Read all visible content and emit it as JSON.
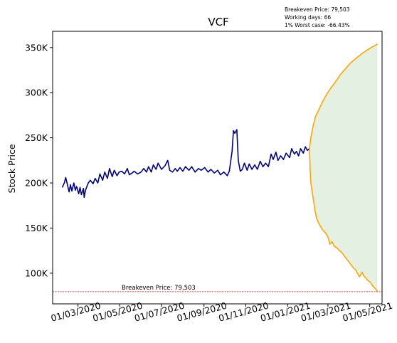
{
  "chart_data": {
    "type": "line",
    "title": "VCF",
    "ylabel": "Stock Price",
    "xlabel": "",
    "ylim": [
      66000,
      368000
    ],
    "x_range": [
      "2020-01-24",
      "2021-05-19"
    ],
    "y_ticks": [
      {
        "value": 100000,
        "label": "100K"
      },
      {
        "value": 150000,
        "label": "150K"
      },
      {
        "value": 200000,
        "label": "200K"
      },
      {
        "value": 250000,
        "label": "250K"
      },
      {
        "value": 300000,
        "label": "300K"
      },
      {
        "value": 350000,
        "label": "350K"
      }
    ],
    "x_ticks": [
      {
        "date": "2020-03-01",
        "label": "01/03/2020"
      },
      {
        "date": "2020-05-01",
        "label": "01/05/2020"
      },
      {
        "date": "2020-07-01",
        "label": "01/07/2020"
      },
      {
        "date": "2020-09-01",
        "label": "01/09/2020"
      },
      {
        "date": "2020-11-01",
        "label": "01/11/2020"
      },
      {
        "date": "2021-01-01",
        "label": "01/01/2021"
      },
      {
        "date": "2021-03-01",
        "label": "01/03/2021"
      },
      {
        "date": "2021-05-01",
        "label": "01/05/2021"
      }
    ],
    "series": [
      {
        "color": "#00008b",
        "points": [
          [
            "2020-02-07",
            195000
          ],
          [
            "2020-02-10",
            200000
          ],
          [
            "2020-02-12",
            206000
          ],
          [
            "2020-02-14",
            200000
          ],
          [
            "2020-02-17",
            190000
          ],
          [
            "2020-02-19",
            198000
          ],
          [
            "2020-02-21",
            191000
          ],
          [
            "2020-02-24",
            200000
          ],
          [
            "2020-02-26",
            192000
          ],
          [
            "2020-02-28",
            196000
          ],
          [
            "2020-03-02",
            188000
          ],
          [
            "2020-03-04",
            195000
          ],
          [
            "2020-03-06",
            187000
          ],
          [
            "2020-03-09",
            194000
          ],
          [
            "2020-03-10",
            184000
          ],
          [
            "2020-03-12",
            192000
          ],
          [
            "2020-03-16",
            200000
          ],
          [
            "2020-03-19",
            203000
          ],
          [
            "2020-03-23",
            199000
          ],
          [
            "2020-03-26",
            205000
          ],
          [
            "2020-03-30",
            200000
          ],
          [
            "2020-04-02",
            210000
          ],
          [
            "2020-04-06",
            203000
          ],
          [
            "2020-04-09",
            212000
          ],
          [
            "2020-04-13",
            205000
          ],
          [
            "2020-04-16",
            216000
          ],
          [
            "2020-04-20",
            207000
          ],
          [
            "2020-04-23",
            214000
          ],
          [
            "2020-04-27",
            208000
          ],
          [
            "2020-04-30",
            212000
          ],
          [
            "2020-05-04",
            213000
          ],
          [
            "2020-05-08",
            210000
          ],
          [
            "2020-05-12",
            216000
          ],
          [
            "2020-05-15",
            209000
          ],
          [
            "2020-05-19",
            211000
          ],
          [
            "2020-05-22",
            213000
          ],
          [
            "2020-05-27",
            210000
          ],
          [
            "2020-06-01",
            212000
          ],
          [
            "2020-06-05",
            216000
          ],
          [
            "2020-06-09",
            212000
          ],
          [
            "2020-06-12",
            218000
          ],
          [
            "2020-06-16",
            212000
          ],
          [
            "2020-06-19",
            220000
          ],
          [
            "2020-06-23",
            215000
          ],
          [
            "2020-06-26",
            222000
          ],
          [
            "2020-07-01",
            215000
          ],
          [
            "2020-07-06",
            219000
          ],
          [
            "2020-07-10",
            225000
          ],
          [
            "2020-07-13",
            214000
          ],
          [
            "2020-07-17",
            212000
          ],
          [
            "2020-07-21",
            216000
          ],
          [
            "2020-07-24",
            213000
          ],
          [
            "2020-07-28",
            217000
          ],
          [
            "2020-08-01",
            213000
          ],
          [
            "2020-08-05",
            218000
          ],
          [
            "2020-08-10",
            214000
          ],
          [
            "2020-08-14",
            218000
          ],
          [
            "2020-08-19",
            212000
          ],
          [
            "2020-08-24",
            216000
          ],
          [
            "2020-08-28",
            214000
          ],
          [
            "2020-09-02",
            217000
          ],
          [
            "2020-09-07",
            212000
          ],
          [
            "2020-09-11",
            215000
          ],
          [
            "2020-09-16",
            211000
          ],
          [
            "2020-09-21",
            214000
          ],
          [
            "2020-09-25",
            209000
          ],
          [
            "2020-09-30",
            212000
          ],
          [
            "2020-10-05",
            208000
          ],
          [
            "2020-10-08",
            213000
          ],
          [
            "2020-10-12",
            235000
          ],
          [
            "2020-10-14",
            258000
          ],
          [
            "2020-10-16",
            255000
          ],
          [
            "2020-10-19",
            259000
          ],
          [
            "2020-10-21",
            225000
          ],
          [
            "2020-10-24",
            213000
          ],
          [
            "2020-10-27",
            215000
          ],
          [
            "2020-10-30",
            222000
          ],
          [
            "2020-11-03",
            214000
          ],
          [
            "2020-11-06",
            221000
          ],
          [
            "2020-11-10",
            215000
          ],
          [
            "2020-11-14",
            220000
          ],
          [
            "2020-11-18",
            215000
          ],
          [
            "2020-11-22",
            224000
          ],
          [
            "2020-11-26",
            218000
          ],
          [
            "2020-11-30",
            222000
          ],
          [
            "2020-12-04",
            218000
          ],
          [
            "2020-12-08",
            232000
          ],
          [
            "2020-12-11",
            226000
          ],
          [
            "2020-12-15",
            234000
          ],
          [
            "2020-12-18",
            225000
          ],
          [
            "2020-12-22",
            230000
          ],
          [
            "2020-12-26",
            226000
          ],
          [
            "2020-12-30",
            233000
          ],
          [
            "2021-01-04",
            228000
          ],
          [
            "2021-01-07",
            238000
          ],
          [
            "2021-01-11",
            232000
          ],
          [
            "2021-01-14",
            235000
          ],
          [
            "2021-01-17",
            230000
          ],
          [
            "2021-01-20",
            238000
          ],
          [
            "2021-01-24",
            233000
          ],
          [
            "2021-01-27",
            240000
          ],
          [
            "2021-01-30",
            236000
          ],
          [
            "2021-02-02",
            238000
          ]
        ]
      },
      {
        "color": "#ffa500",
        "points": [
          [
            "2021-02-02",
            238000
          ],
          [
            "2021-02-04",
            250000
          ],
          [
            "2021-02-07",
            262000
          ],
          [
            "2021-02-11",
            274000
          ],
          [
            "2021-02-15",
            280000
          ],
          [
            "2021-02-21",
            290000
          ],
          [
            "2021-02-27",
            298000
          ],
          [
            "2021-03-05",
            305000
          ],
          [
            "2021-03-12",
            312000
          ],
          [
            "2021-03-19",
            320000
          ],
          [
            "2021-03-26",
            326000
          ],
          [
            "2021-04-03",
            333000
          ],
          [
            "2021-04-11",
            338000
          ],
          [
            "2021-04-19",
            343000
          ],
          [
            "2021-04-27",
            347000
          ],
          [
            "2021-05-03",
            350000
          ],
          [
            "2021-05-08",
            352000
          ],
          [
            "2021-05-12",
            354000
          ]
        ]
      },
      {
        "color": "#ffa500",
        "points": [
          [
            "2021-02-02",
            238000
          ],
          [
            "2021-02-03",
            215000
          ],
          [
            "2021-02-04",
            200000
          ],
          [
            "2021-02-06",
            190000
          ],
          [
            "2021-02-08",
            180000
          ],
          [
            "2021-02-10",
            170000
          ],
          [
            "2021-02-12",
            162000
          ],
          [
            "2021-02-15",
            156000
          ],
          [
            "2021-02-18",
            152000
          ],
          [
            "2021-02-21",
            148000
          ],
          [
            "2021-02-25",
            145000
          ],
          [
            "2021-03-01",
            140000
          ],
          [
            "2021-03-04",
            132000
          ],
          [
            "2021-03-07",
            135000
          ],
          [
            "2021-03-10",
            130000
          ],
          [
            "2021-03-14",
            128000
          ],
          [
            "2021-03-18",
            125000
          ],
          [
            "2021-03-22",
            122000
          ],
          [
            "2021-03-26",
            118000
          ],
          [
            "2021-03-30",
            114000
          ],
          [
            "2021-04-03",
            110000
          ],
          [
            "2021-04-07",
            106000
          ],
          [
            "2021-04-10",
            104000
          ],
          [
            "2021-04-13",
            100000
          ],
          [
            "2021-04-16",
            96000
          ],
          [
            "2021-04-20",
            101000
          ],
          [
            "2021-04-22",
            97000
          ],
          [
            "2021-04-25",
            95000
          ],
          [
            "2021-04-28",
            92000
          ],
          [
            "2021-05-02",
            90000
          ],
          [
            "2021-05-05",
            86000
          ],
          [
            "2021-05-08",
            84000
          ],
          [
            "2021-05-10",
            82000
          ],
          [
            "2021-05-12",
            80000
          ]
        ]
      }
    ],
    "band": {
      "color": "#2e8b22",
      "opacity": 0.13
    },
    "breakeven": {
      "value": 79503,
      "label": "Breakeven Price: 79,503",
      "color": "#ff0000"
    },
    "annotations": [
      "Breakeven Price: 79,503",
      "Working days: 66",
      "1% Worst case: -66.43%"
    ],
    "grid": false,
    "legend": "none"
  }
}
